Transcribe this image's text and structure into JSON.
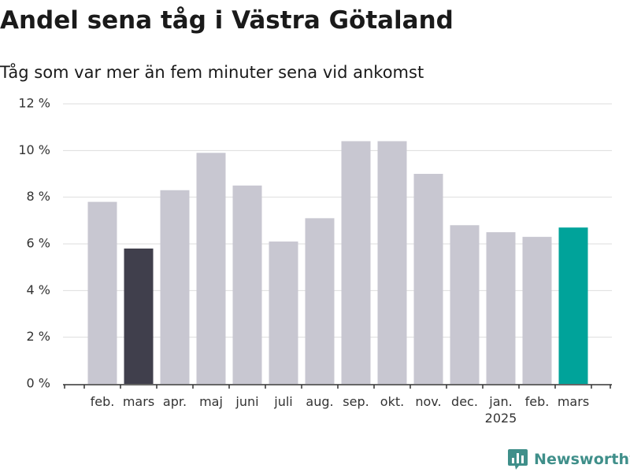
{
  "header": {
    "title": "Andel sena tåg i Västra Götaland",
    "subtitle": "Tåg som var mer än fem minuter sena vid ankomst"
  },
  "brand": {
    "name": "Newsworthy"
  },
  "colors": {
    "default_bar": "#c8c7d1",
    "previous_year_highlight": "#403f4c",
    "current_highlight": "#00a39a",
    "gridline": "#dddddd",
    "axis": "#333333",
    "text": "#333333",
    "brand": "#3f8f8a"
  },
  "chart_data": {
    "type": "bar",
    "categories": [
      "feb.",
      "mars",
      "apr.",
      "maj",
      "juni",
      "juli",
      "aug.",
      "sep.",
      "okt.",
      "nov.",
      "dec.",
      "jan.",
      "feb.",
      "mars"
    ],
    "category_sublabels": [
      "",
      "",
      "",
      "",
      "",
      "",
      "",
      "",
      "",
      "",
      "",
      "2025",
      "",
      ""
    ],
    "values": [
      7.8,
      5.8,
      8.3,
      9.9,
      8.5,
      6.1,
      7.1,
      10.4,
      10.4,
      9.0,
      6.8,
      6.5,
      6.3,
      6.7
    ],
    "highlight": [
      "",
      "dark",
      "",
      "",
      "",
      "",
      "",
      "",
      "",
      "",
      "",
      "",
      "",
      "teal"
    ],
    "title": "Andel sena tåg i Västra Götaland",
    "subtitle": "Tåg som var mer än fem minuter sena vid ankomst",
    "xlabel": "",
    "ylabel": "",
    "ylim": [
      0,
      12
    ],
    "yticks": [
      0,
      2,
      4,
      6,
      8,
      10,
      12
    ],
    "ytick_labels": [
      "0 %",
      "2 %",
      "4 %",
      "6 %",
      "8 %",
      "10 %",
      "12 %"
    ],
    "grid": true
  }
}
